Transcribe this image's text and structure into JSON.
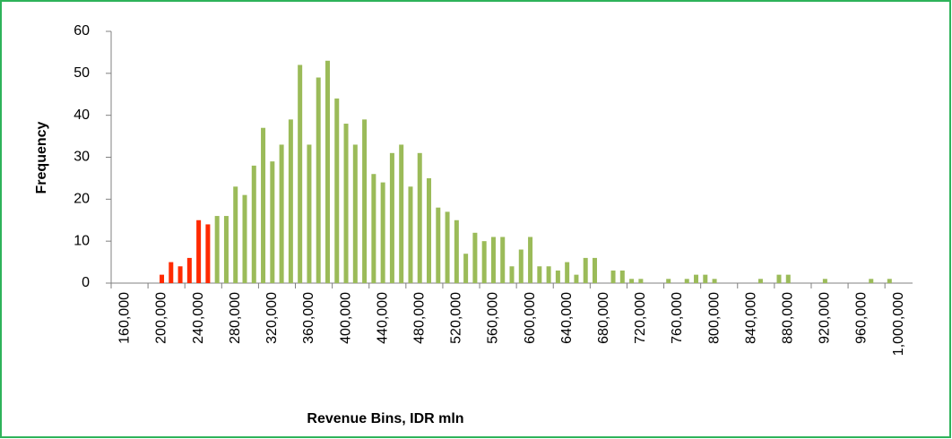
{
  "chart_data": {
    "type": "bar",
    "x_label": "Revenue Bins, IDR mln",
    "y_label": "Frequency",
    "categories": [
      null,
      "160,000",
      null,
      null,
      null,
      "200,000",
      null,
      null,
      null,
      "240,000",
      null,
      null,
      null,
      "280,000",
      null,
      null,
      null,
      "320,000",
      null,
      null,
      null,
      "360,000",
      null,
      null,
      null,
      "400,000",
      null,
      null,
      null,
      "440,000",
      null,
      null,
      null,
      "480,000",
      null,
      null,
      null,
      "520,000",
      null,
      null,
      null,
      "560,000",
      null,
      null,
      null,
      "600,000",
      null,
      null,
      null,
      "640,000",
      null,
      null,
      null,
      "680,000",
      null,
      null,
      null,
      "720,000",
      null,
      null,
      null,
      "760,000",
      null,
      null,
      null,
      "800,000",
      null,
      null,
      null,
      "840,000",
      null,
      null,
      null,
      "880,000",
      null,
      null,
      null,
      "920,000",
      null,
      null,
      null,
      "960,000",
      null,
      null,
      null,
      "1,000,000",
      null
    ],
    "values": [
      0,
      0,
      0,
      0,
      0,
      2,
      5,
      4,
      6,
      15,
      14,
      16,
      16,
      23,
      21,
      28,
      37,
      29,
      33,
      39,
      52,
      33,
      49,
      53,
      44,
      38,
      33,
      39,
      26,
      24,
      31,
      33,
      23,
      31,
      25,
      18,
      17,
      15,
      7,
      12,
      10,
      11,
      11,
      4,
      8,
      11,
      4,
      4,
      3,
      5,
      2,
      6,
      6,
      0,
      3,
      3,
      1,
      1,
      0,
      0,
      1,
      0,
      1,
      2,
      2,
      1,
      0,
      0,
      0,
      0,
      1,
      0,
      2,
      2,
      0,
      0,
      0,
      1,
      0,
      0,
      0,
      0,
      1,
      0,
      1,
      0,
      0
    ],
    "colors": [
      "#ff2a00",
      "#ff2a00",
      "#ff2a00",
      "#ff2a00",
      "#ff2a00",
      "#ff2a00",
      "#ff2a00",
      "#ff2a00",
      "#ff2a00",
      "#ff2a00",
      "#ff2a00",
      "#9bbb59",
      "#9bbb59",
      "#9bbb59",
      "#9bbb59",
      "#9bbb59",
      "#9bbb59",
      "#9bbb59",
      "#9bbb59",
      "#9bbb59",
      "#9bbb59",
      "#9bbb59",
      "#9bbb59",
      "#9bbb59",
      "#9bbb59",
      "#9bbb59",
      "#9bbb59",
      "#9bbb59",
      "#9bbb59",
      "#9bbb59",
      "#9bbb59",
      "#9bbb59",
      "#9bbb59",
      "#9bbb59",
      "#9bbb59",
      "#9bbb59",
      "#9bbb59",
      "#9bbb59",
      "#9bbb59",
      "#9bbb59",
      "#9bbb59",
      "#9bbb59",
      "#9bbb59",
      "#9bbb59",
      "#9bbb59",
      "#9bbb59",
      "#9bbb59",
      "#9bbb59",
      "#9bbb59",
      "#9bbb59",
      "#9bbb59",
      "#9bbb59",
      "#9bbb59",
      "#9bbb59",
      "#9bbb59",
      "#9bbb59",
      "#9bbb59",
      "#9bbb59",
      "#9bbb59",
      "#9bbb59",
      "#9bbb59",
      "#9bbb59",
      "#9bbb59",
      "#9bbb59",
      "#9bbb59",
      "#9bbb59",
      "#9bbb59",
      "#9bbb59",
      "#9bbb59",
      "#9bbb59",
      "#9bbb59",
      "#9bbb59",
      "#9bbb59",
      "#9bbb59",
      "#9bbb59",
      "#9bbb59",
      "#9bbb59",
      "#9bbb59",
      "#9bbb59",
      "#9bbb59",
      "#9bbb59",
      "#9bbb59",
      "#9bbb59",
      "#9bbb59",
      "#9bbb59",
      "#9bbb59",
      "#9bbb59"
    ],
    "ylim": [
      0,
      60
    ],
    "yticks": [
      0,
      10,
      20,
      30,
      40,
      50,
      60
    ],
    "grid": false
  }
}
